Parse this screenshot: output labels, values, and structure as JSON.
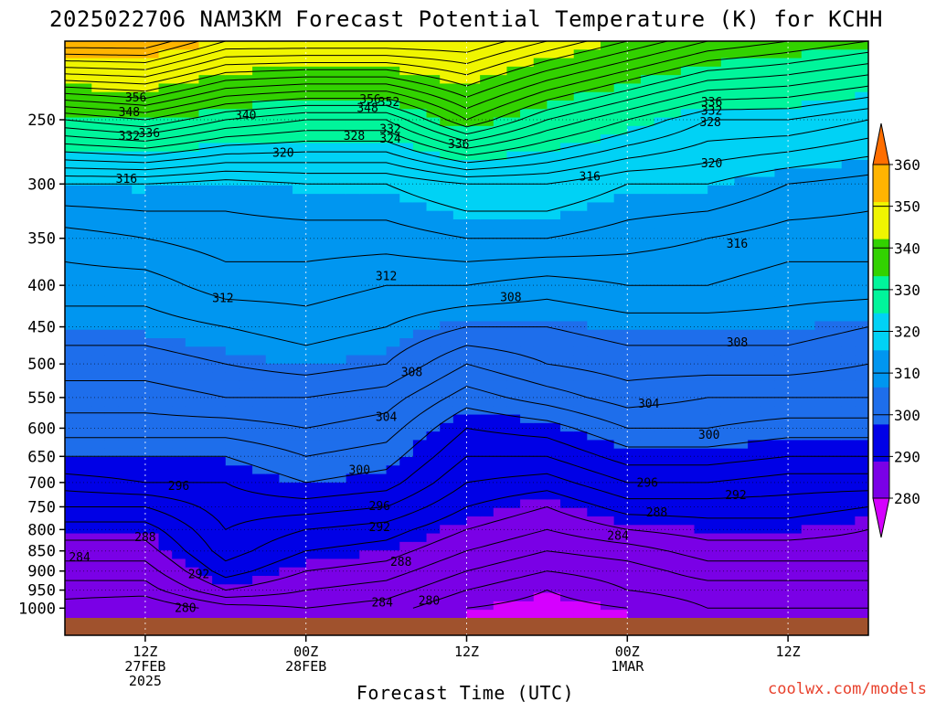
{
  "chart_data": {
    "type": "heatmap",
    "title": "2025022706 NAM3KM Forecast Potential Temperature (K) for KCHH",
    "xlabel": "Forecast Time (UTC)",
    "ylabel": "",
    "y_scale": "log",
    "y_reversed": true,
    "y_ticks": [
      250,
      300,
      350,
      400,
      450,
      500,
      550,
      600,
      650,
      700,
      750,
      800,
      850,
      900,
      950,
      1000
    ],
    "x_ticks": [
      {
        "t": 6,
        "lines": [
          "12Z",
          "27FEB",
          "2025"
        ]
      },
      {
        "t": 18,
        "lines": [
          "00Z",
          "28FEB"
        ]
      },
      {
        "t": 30,
        "lines": [
          "12Z"
        ]
      },
      {
        "t": 42,
        "lines": [
          "00Z",
          "1MAR"
        ]
      },
      {
        "t": 54,
        "lines": [
          "12Z"
        ]
      }
    ],
    "x_range_hours": [
      0,
      60
    ],
    "grid": true,
    "colorbar": {
      "levels": [
        280,
        290,
        300,
        310,
        320,
        330,
        340,
        350,
        360
      ],
      "colors": [
        "#d500ff",
        "#7a00e6",
        "#0000e6",
        "#1e6eeb",
        "#0096f0",
        "#00d2f5",
        "#00f59b",
        "#32d200",
        "#f0f500",
        "#ffb400",
        "#ff6e00"
      ],
      "extends": "both"
    },
    "contour_interval": 2,
    "theta_profiles": [
      {
        "t": 0,
        "p": [
          1000,
          950,
          900,
          850,
          800,
          750,
          700,
          650,
          600,
          550,
          500,
          450,
          400,
          350,
          300,
          250,
          200
        ],
        "theta": [
          281,
          283,
          285,
          287,
          289,
          292,
          295,
          298,
          301,
          303,
          305,
          307,
          309,
          311,
          316,
          332,
          356
        ]
      },
      {
        "t": 6,
        "p": [
          1000,
          950,
          900,
          850,
          800,
          750,
          700,
          650,
          600,
          550,
          500,
          450,
          400,
          350,
          300,
          250,
          200
        ],
        "theta": [
          280,
          283,
          285,
          287,
          289,
          292,
          296,
          298,
          301,
          303,
          305,
          307,
          309,
          312,
          316,
          334,
          356
        ]
      },
      {
        "t": 12,
        "p": [
          1000,
          950,
          900,
          850,
          800,
          750,
          700,
          650,
          600,
          550,
          500,
          450,
          400,
          350,
          300,
          250,
          200
        ],
        "theta": [
          283,
          288,
          291,
          293,
          294,
          295,
          296,
          298,
          301,
          304,
          306,
          308,
          311,
          313,
          315,
          330,
          350
        ]
      },
      {
        "t": 18,
        "p": [
          1000,
          950,
          900,
          850,
          800,
          750,
          700,
          650,
          600,
          550,
          500,
          450,
          400,
          350,
          300,
          250,
          200
        ],
        "theta": [
          284,
          286,
          288,
          290,
          292,
          295,
          298,
          300,
          302,
          304,
          307,
          309,
          311,
          313,
          316,
          328,
          350
        ]
      },
      {
        "t": 24,
        "p": [
          1000,
          950,
          900,
          850,
          800,
          750,
          700,
          650,
          600,
          550,
          500,
          450,
          400,
          350,
          300,
          250,
          200
        ],
        "theta": [
          283,
          285,
          287,
          289,
          291,
          294,
          297,
          299,
          301,
          303,
          306,
          308,
          310,
          313,
          316,
          328,
          350
        ]
      },
      {
        "t": 30,
        "p": [
          1000,
          950,
          900,
          850,
          800,
          750,
          700,
          650,
          600,
          550,
          500,
          450,
          400,
          350,
          300,
          250,
          200
        ],
        "theta": [
          280,
          282,
          284,
          286,
          288,
          290,
          292,
          294,
          296,
          299,
          302,
          306,
          310,
          314,
          318,
          336,
          350
        ]
      },
      {
        "t": 36,
        "p": [
          1000,
          950,
          900,
          850,
          800,
          750,
          700,
          650,
          600,
          550,
          500,
          450,
          400,
          350,
          300,
          250,
          200
        ],
        "theta": [
          279,
          280,
          282,
          284,
          286,
          288,
          291,
          294,
          297,
          301,
          304,
          306,
          309,
          314,
          318,
          330,
          346
        ]
      },
      {
        "t": 42,
        "p": [
          1000,
          950,
          900,
          850,
          800,
          750,
          700,
          650,
          600,
          550,
          500,
          450,
          400,
          350,
          300,
          250,
          200
        ],
        "theta": [
          280,
          282,
          283,
          285,
          288,
          291,
          294,
          297,
          300,
          303,
          305,
          307,
          310,
          313,
          316,
          326,
          342
        ]
      },
      {
        "t": 48,
        "p": [
          1000,
          950,
          900,
          850,
          800,
          750,
          700,
          650,
          600,
          550,
          500,
          450,
          400,
          350,
          300,
          250,
          200
        ],
        "theta": [
          282,
          283,
          285,
          287,
          289,
          291,
          294,
          297,
          300,
          302,
          305,
          307,
          310,
          312,
          316,
          322,
          338
        ]
      },
      {
        "t": 54,
        "p": [
          1000,
          950,
          900,
          850,
          800,
          750,
          700,
          650,
          600,
          550,
          500,
          450,
          400,
          350,
          300,
          250,
          200
        ],
        "theta": [
          282,
          283,
          285,
          287,
          289,
          291,
          293,
          296,
          299,
          302,
          305,
          307,
          309,
          311,
          314,
          322,
          336
        ]
      },
      {
        "t": 60,
        "p": [
          1000,
          950,
          900,
          850,
          800,
          750,
          700,
          650,
          600,
          550,
          500,
          450,
          400,
          350,
          300,
          250,
          200
        ],
        "theta": [
          282,
          283,
          285,
          287,
          288,
          290,
          293,
          296,
          299,
          302,
          304,
          306,
          309,
          311,
          313,
          320,
          334
        ]
      }
    ],
    "contour_labels": [
      {
        "t": 5.3,
        "p": 235,
        "text": "356"
      },
      {
        "t": 4.8,
        "p": 245,
        "text": "348"
      },
      {
        "t": 13.5,
        "p": 247,
        "text": "340"
      },
      {
        "t": 4.8,
        "p": 262,
        "text": "332"
      },
      {
        "t": 6.3,
        "p": 260,
        "text": "336"
      },
      {
        "t": 22.8,
        "p": 236,
        "text": "356"
      },
      {
        "t": 24.2,
        "p": 238,
        "text": "352"
      },
      {
        "t": 22.6,
        "p": 242,
        "text": "348"
      },
      {
        "t": 21.6,
        "p": 262,
        "text": "328"
      },
      {
        "t": 24.3,
        "p": 257,
        "text": "332"
      },
      {
        "t": 24.3,
        "p": 264,
        "text": "324"
      },
      {
        "t": 16.3,
        "p": 275,
        "text": "320"
      },
      {
        "t": 29.4,
        "p": 268,
        "text": "336"
      },
      {
        "t": 48.3,
        "p": 238,
        "text": "336"
      },
      {
        "t": 48.3,
        "p": 244,
        "text": "332"
      },
      {
        "t": 48.2,
        "p": 252,
        "text": "328"
      },
      {
        "t": 48.3,
        "p": 283,
        "text": "320"
      },
      {
        "t": 39.2,
        "p": 294,
        "text": "316"
      },
      {
        "t": 50.2,
        "p": 356,
        "text": "316"
      },
      {
        "t": 4.6,
        "p": 296,
        "text": "316"
      },
      {
        "t": 11.8,
        "p": 415,
        "text": "312"
      },
      {
        "t": 24.0,
        "p": 390,
        "text": "312"
      },
      {
        "t": 33.3,
        "p": 414,
        "text": "308"
      },
      {
        "t": 50.2,
        "p": 471,
        "text": "308"
      },
      {
        "t": 25.9,
        "p": 512,
        "text": "308"
      },
      {
        "t": 43.6,
        "p": 560,
        "text": "304"
      },
      {
        "t": 24.0,
        "p": 582,
        "text": "304"
      },
      {
        "t": 48.1,
        "p": 612,
        "text": "300"
      },
      {
        "t": 22.0,
        "p": 676,
        "text": "300"
      },
      {
        "t": 8.5,
        "p": 708,
        "text": "296"
      },
      {
        "t": 23.5,
        "p": 749,
        "text": "296"
      },
      {
        "t": 43.5,
        "p": 701,
        "text": "296"
      },
      {
        "t": 50.1,
        "p": 726,
        "text": "292"
      },
      {
        "t": 23.5,
        "p": 795,
        "text": "292"
      },
      {
        "t": 44.2,
        "p": 763,
        "text": "288"
      },
      {
        "t": 41.3,
        "p": 815,
        "text": "284"
      },
      {
        "t": 6.0,
        "p": 818,
        "text": "288"
      },
      {
        "t": 25.1,
        "p": 878,
        "text": "288"
      },
      {
        "t": 1.1,
        "p": 866,
        "text": "284"
      },
      {
        "t": 10.0,
        "p": 909,
        "text": "292"
      },
      {
        "t": 23.7,
        "p": 985,
        "text": "284"
      },
      {
        "t": 27.2,
        "p": 980,
        "text": "280"
      },
      {
        "t": 9.0,
        "p": 1000,
        "text": "280"
      }
    ]
  },
  "footer": {
    "credit": "coolwx.com/models",
    "credit_color": "#e8412c"
  }
}
